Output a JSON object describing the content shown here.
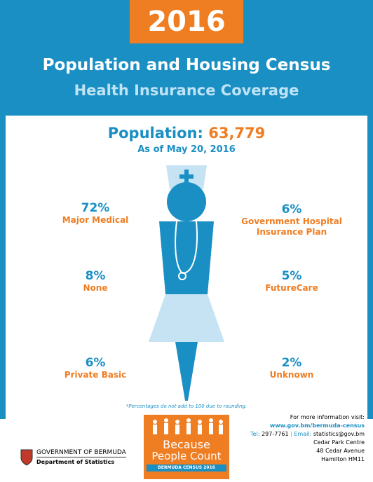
{
  "header": {
    "year": "2016",
    "title": "Population and Housing Census",
    "subtitle": "Health Insurance Coverage"
  },
  "population": {
    "label": "Population:",
    "value": "63,779",
    "date": "As of May 20, 2016"
  },
  "items": [
    {
      "percent": "72%",
      "label": "Major Medical"
    },
    {
      "percent": "6%",
      "label": "Government Hospital Insurance Plan"
    },
    {
      "percent": "8%",
      "label": "None"
    },
    {
      "percent": "5%",
      "label": "FutureCare"
    },
    {
      "percent": "6%",
      "label": "Private Basic"
    },
    {
      "percent": "2%",
      "label": "Unknown"
    }
  ],
  "footnote": "*Percentages do not add to 100 due to rounding.",
  "logo": {
    "line1": "Because",
    "line2": "People Count",
    "banner": "BERMUDA CENSUS 2016"
  },
  "government": {
    "name": "GOVERNMENT OF BERMUDA",
    "department": "Department of Statistics"
  },
  "contact": {
    "intro": "For more information visit:",
    "website": "www.gov.bm/bermuda-census",
    "tel_label": "Tel:",
    "tel": "297-7761",
    "email_label": "Email:",
    "email": "statistics@gov.bm",
    "address": [
      "Cedar Park Centre",
      "48 Cedar Avenue",
      "Hamilton HM11"
    ]
  }
}
